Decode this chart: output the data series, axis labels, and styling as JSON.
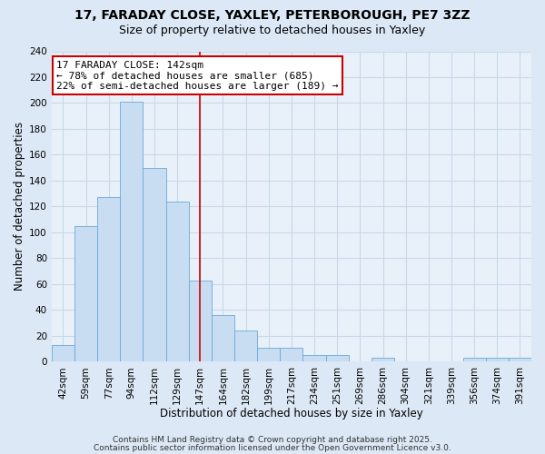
{
  "title_line1": "17, FARADAY CLOSE, YAXLEY, PETERBOROUGH, PE7 3ZZ",
  "title_line2": "Size of property relative to detached houses in Yaxley",
  "xlabel": "Distribution of detached houses by size in Yaxley",
  "ylabel": "Number of detached properties",
  "bar_labels": [
    "42sqm",
    "59sqm",
    "77sqm",
    "94sqm",
    "112sqm",
    "129sqm",
    "147sqm",
    "164sqm",
    "182sqm",
    "199sqm",
    "217sqm",
    "234sqm",
    "251sqm",
    "269sqm",
    "286sqm",
    "304sqm",
    "321sqm",
    "339sqm",
    "356sqm",
    "374sqm",
    "391sqm"
  ],
  "bar_heights": [
    13,
    105,
    127,
    201,
    150,
    124,
    63,
    36,
    24,
    11,
    11,
    5,
    5,
    0,
    3,
    0,
    0,
    0,
    3,
    3,
    3
  ],
  "bar_width": 1,
  "bar_facecolor": "#c9ddf2",
  "bar_edgecolor": "#6aaad4",
  "vline_x": 6.0,
  "vline_color": "#cc0000",
  "annotation_title": "17 FARADAY CLOSE: 142sqm",
  "annotation_line1": "← 78% of detached houses are smaller (685)",
  "annotation_line2": "22% of semi-detached houses are larger (189) →",
  "annotation_box_edgecolor": "#cc0000",
  "annotation_box_facecolor": "white",
  "ylim": [
    0,
    240
  ],
  "yticks": [
    0,
    20,
    40,
    60,
    80,
    100,
    120,
    140,
    160,
    180,
    200,
    220,
    240
  ],
  "footer_line1": "Contains HM Land Registry data © Crown copyright and database right 2025.",
  "footer_line2": "Contains public sector information licensed under the Open Government Licence v3.0.",
  "bg_color": "#dce8f5",
  "plot_bg_color": "#e8f1f9",
  "grid_color": "#c8d8e8",
  "title_fontsize": 10,
  "subtitle_fontsize": 9,
  "axis_label_fontsize": 8.5,
  "tick_fontsize": 7.5,
  "annotation_fontsize": 8,
  "footer_fontsize": 6.5
}
